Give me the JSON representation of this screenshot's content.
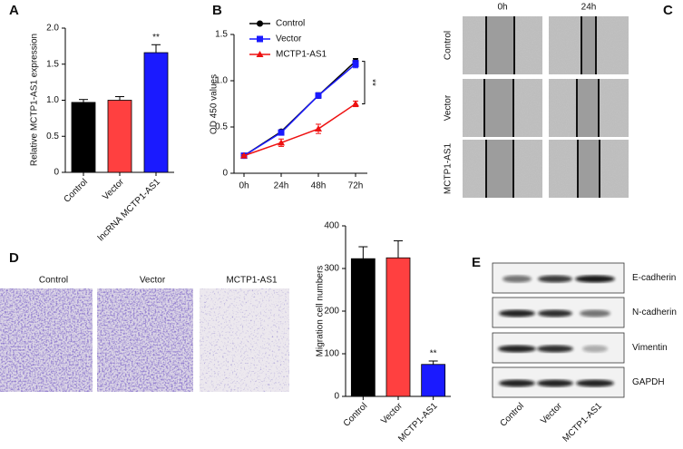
{
  "chart_data": [
    {
      "type": "bar",
      "label": "A",
      "ylabel": "Relative MCTP1-AS1 expression",
      "categories": [
        "Control",
        "Vector",
        "lncRNA MCTP1-AS1"
      ],
      "values": [
        0.97,
        1.0,
        1.66
      ],
      "errors": [
        0.04,
        0.05,
        0.11
      ],
      "colors": [
        "#000000",
        "#ff4040",
        "#1a1aff"
      ],
      "ylim": [
        0,
        2.0
      ],
      "yticks": [
        0,
        {
          "value": 0.5,
          "label": "0.5"
        },
        {
          "value": 1,
          "label": "1.0"
        },
        {
          "value": 1.5,
          "label": "1.5"
        },
        {
          "value": 2,
          "label": "2.0"
        }
      ],
      "annotation": "**"
    },
    {
      "type": "line",
      "label": "B",
      "ylabel": "OD 450 values",
      "categories": [
        "0h",
        "24h",
        "48h",
        "72h"
      ],
      "series": [
        {
          "name": "Control",
          "color": "#000000",
          "marker": "circle",
          "values": [
            0.19,
            0.45,
            0.84,
            1.21
          ],
          "errors": [
            0.01,
            0.02,
            0.03,
            0.03
          ]
        },
        {
          "name": "Vector",
          "color": "#1a1aff",
          "marker": "square",
          "values": [
            0.19,
            0.44,
            0.84,
            1.18
          ],
          "errors": [
            0.01,
            0.02,
            0.02,
            0.04
          ]
        },
        {
          "name": "MCTP1-AS1",
          "color": "#ee1111",
          "marker": "triangle",
          "values": [
            0.19,
            0.33,
            0.48,
            0.75
          ],
          "errors": [
            0.01,
            0.04,
            0.05,
            0.03
          ]
        }
      ],
      "ylim": [
        0,
        1.5
      ],
      "yticks": [
        0,
        {
          "value": 0.5,
          "label": "0.5"
        },
        {
          "value": 1,
          "label": "1.0"
        },
        {
          "value": 1.5,
          "label": "1.5"
        }
      ],
      "annotation": "**"
    },
    {
      "type": "bar",
      "label": "D",
      "ylabel": "Migration cell numbers",
      "categories": [
        "Control",
        "Vector",
        "MCTP1-AS1"
      ],
      "values": [
        323,
        325,
        75
      ],
      "errors": [
        28,
        40,
        8
      ],
      "colors": [
        "#000000",
        "#ff4040",
        "#1a1aff"
      ],
      "ylim": [
        0,
        400
      ],
      "yticks": [
        0,
        100,
        200,
        300,
        400
      ],
      "annotation": "**"
    }
  ],
  "panel_c": {
    "label": "C",
    "columns": [
      "0h",
      "24h"
    ],
    "rows": [
      "Control",
      "Vector",
      "MCTP1-AS1"
    ]
  },
  "panel_d_images": {
    "captions": [
      "Control",
      "Vector",
      "MCTP1-AS1"
    ]
  },
  "panel_e": {
    "label": "E",
    "proteins": [
      "E-cadherin",
      "N-cadherin",
      "Vimentin",
      "GAPDH"
    ],
    "lanes": [
      "Control",
      "Vector",
      "MCTP1-AS1"
    ]
  }
}
